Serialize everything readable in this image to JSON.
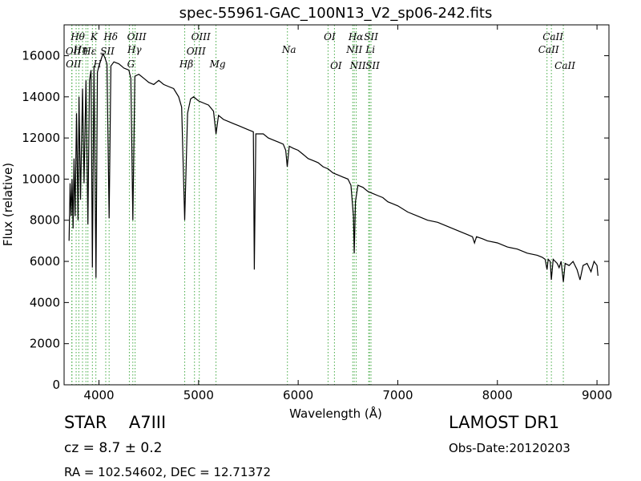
{
  "chart_data": {
    "type": "line",
    "title": "spec-55961-GAC_100N13_V2_sp06-242.fits",
    "xlabel": "Wavelength (Å)",
    "ylabel": "Flux (relative)",
    "xlim": [
      3650,
      9120
    ],
    "ylim": [
      0,
      17500
    ],
    "xticks": [
      4000,
      5000,
      6000,
      7000,
      8000,
      9000
    ],
    "yticks": [
      0,
      2000,
      4000,
      6000,
      8000,
      10000,
      12000,
      14000,
      16000
    ],
    "grid": false,
    "line_color": "#000000",
    "marker_color": "#44aa44",
    "series": [
      {
        "values": [
          [
            3700,
            7000
          ],
          [
            3710,
            9800
          ],
          [
            3720,
            8200
          ],
          [
            3730,
            10000
          ],
          [
            3740,
            7600
          ],
          [
            3750,
            11000
          ],
          [
            3760,
            8200
          ],
          [
            3775,
            13200
          ],
          [
            3790,
            8000
          ],
          [
            3800,
            14000
          ],
          [
            3815,
            9000
          ],
          [
            3835,
            14400
          ],
          [
            3850,
            9800
          ],
          [
            3870,
            14800
          ],
          [
            3889,
            7800
          ],
          [
            3905,
            14800
          ],
          [
            3920,
            15300
          ],
          [
            3934,
            5700
          ],
          [
            3950,
            15500
          ],
          [
            3970,
            5200
          ],
          [
            3985,
            15200
          ],
          [
            4000,
            15500
          ],
          [
            4020,
            15800
          ],
          [
            4040,
            16100
          ],
          [
            4060,
            15900
          ],
          [
            4080,
            15600
          ],
          [
            4102,
            8100
          ],
          [
            4120,
            15500
          ],
          [
            4150,
            15700
          ],
          [
            4200,
            15600
          ],
          [
            4250,
            15400
          ],
          [
            4300,
            15300
          ],
          [
            4320,
            14900
          ],
          [
            4340,
            8000
          ],
          [
            4360,
            15000
          ],
          [
            4400,
            15100
          ],
          [
            4450,
            14900
          ],
          [
            4500,
            14700
          ],
          [
            4550,
            14600
          ],
          [
            4600,
            14800
          ],
          [
            4650,
            14600
          ],
          [
            4700,
            14500
          ],
          [
            4750,
            14400
          ],
          [
            4800,
            14000
          ],
          [
            4830,
            13500
          ],
          [
            4861,
            8000
          ],
          [
            4890,
            13200
          ],
          [
            4920,
            13900
          ],
          [
            4950,
            14000
          ],
          [
            5000,
            13800
          ],
          [
            5050,
            13700
          ],
          [
            5100,
            13600
          ],
          [
            5150,
            13300
          ],
          [
            5175,
            12200
          ],
          [
            5200,
            13100
          ],
          [
            5250,
            12900
          ],
          [
            5300,
            12800
          ],
          [
            5350,
            12700
          ],
          [
            5400,
            12600
          ],
          [
            5450,
            12500
          ],
          [
            5500,
            12400
          ],
          [
            5550,
            12300
          ],
          [
            5560,
            5600
          ],
          [
            5575,
            12200
          ],
          [
            5650,
            12200
          ],
          [
            5700,
            12000
          ],
          [
            5750,
            11900
          ],
          [
            5800,
            11800
          ],
          [
            5850,
            11700
          ],
          [
            5875,
            11400
          ],
          [
            5890,
            10600
          ],
          [
            5910,
            11600
          ],
          [
            5950,
            11500
          ],
          [
            6000,
            11400
          ],
          [
            6050,
            11200
          ],
          [
            6100,
            11000
          ],
          [
            6150,
            10900
          ],
          [
            6200,
            10800
          ],
          [
            6250,
            10600
          ],
          [
            6300,
            10500
          ],
          [
            6350,
            10300
          ],
          [
            6400,
            10200
          ],
          [
            6450,
            10100
          ],
          [
            6500,
            10000
          ],
          [
            6530,
            9700
          ],
          [
            6555,
            8200
          ],
          [
            6563,
            6400
          ],
          [
            6575,
            8900
          ],
          [
            6600,
            9700
          ],
          [
            6650,
            9600
          ],
          [
            6700,
            9400
          ],
          [
            6750,
            9300
          ],
          [
            6800,
            9200
          ],
          [
            6850,
            9100
          ],
          [
            6900,
            8900
          ],
          [
            6950,
            8800
          ],
          [
            7000,
            8700
          ],
          [
            7100,
            8400
          ],
          [
            7200,
            8200
          ],
          [
            7300,
            8000
          ],
          [
            7400,
            7900
          ],
          [
            7500,
            7700
          ],
          [
            7600,
            7500
          ],
          [
            7700,
            7300
          ],
          [
            7750,
            7200
          ],
          [
            7770,
            6900
          ],
          [
            7790,
            7200
          ],
          [
            7850,
            7100
          ],
          [
            7900,
            7000
          ],
          [
            8000,
            6900
          ],
          [
            8100,
            6700
          ],
          [
            8200,
            6600
          ],
          [
            8300,
            6400
          ],
          [
            8400,
            6300
          ],
          [
            8450,
            6200
          ],
          [
            8480,
            6100
          ],
          [
            8498,
            5600
          ],
          [
            8510,
            6100
          ],
          [
            8530,
            6000
          ],
          [
            8542,
            5100
          ],
          [
            8560,
            6100
          ],
          [
            8600,
            5900
          ],
          [
            8620,
            5700
          ],
          [
            8640,
            6000
          ],
          [
            8662,
            5000
          ],
          [
            8680,
            5900
          ],
          [
            8720,
            5800
          ],
          [
            8760,
            6000
          ],
          [
            8800,
            5600
          ],
          [
            8830,
            5100
          ],
          [
            8860,
            5800
          ],
          [
            8900,
            5900
          ],
          [
            8940,
            5500
          ],
          [
            8970,
            6000
          ],
          [
            9000,
            5800
          ],
          [
            9010,
            5300
          ]
        ]
      }
    ],
    "line_markers": [
      {
        "x": 3727,
        "label": "OII",
        "row": 2
      },
      {
        "x": 3729,
        "label": "OII",
        "row": 4
      },
      {
        "x": 3771,
        "label": "Hθ",
        "row": 1
      },
      {
        "x": 3798,
        "label": "Hη",
        "row": 3
      },
      {
        "x": 3835,
        "label": "",
        "row": 0
      },
      {
        "x": 3869,
        "label": "",
        "row": 0
      },
      {
        "x": 3889,
        "label": "Hε",
        "row": 2
      },
      {
        "x": 3934,
        "label": "K",
        "row": 1
      },
      {
        "x": 3969,
        "label": "H",
        "row": 4
      },
      {
        "x": 4068,
        "label": "SII",
        "row": 2
      },
      {
        "x": 4102,
        "label": "Hδ",
        "row": 1
      },
      {
        "x": 4305,
        "label": "G",
        "row": 4
      },
      {
        "x": 4340,
        "label": "Hγ",
        "row": 3
      },
      {
        "x": 4363,
        "label": "OIII",
        "row": 1
      },
      {
        "x": 4861,
        "label": "Hβ",
        "row": 4
      },
      {
        "x": 4959,
        "label": "OIII",
        "row": 2
      },
      {
        "x": 5007,
        "label": "OIII",
        "row": 1
      },
      {
        "x": 5175,
        "label": "Mg",
        "row": 4
      },
      {
        "x": 5892,
        "label": "Na",
        "row": 3
      },
      {
        "x": 6300,
        "label": "OI",
        "row": 1
      },
      {
        "x": 6364,
        "label": "OI",
        "row": 5
      },
      {
        "x": 6548,
        "label": "NII",
        "row": 3
      },
      {
        "x": 6563,
        "label": "Hα",
        "row": 1
      },
      {
        "x": 6583,
        "label": "NII",
        "row": 5
      },
      {
        "x": 6716,
        "label": "SII",
        "row": 1
      },
      {
        "x": 6731,
        "label": "SII",
        "row": 5
      },
      {
        "x": 6708,
        "label": "Li",
        "row": 3
      },
      {
        "x": 8498,
        "label": "CaII",
        "row": 3
      },
      {
        "x": 8542,
        "label": "CaII",
        "row": 1
      },
      {
        "x": 8662,
        "label": "CaII",
        "row": 5
      }
    ]
  },
  "footer": {
    "object_type": "STAR",
    "subclass": "A7III",
    "survey": "LAMOST DR1",
    "cz_label": "cz = 8.7",
    "cz_error": "± 0.2",
    "obs_date": "Obs-Date:20120203",
    "coords": "RA = 102.54602, DEC = 12.71372"
  }
}
